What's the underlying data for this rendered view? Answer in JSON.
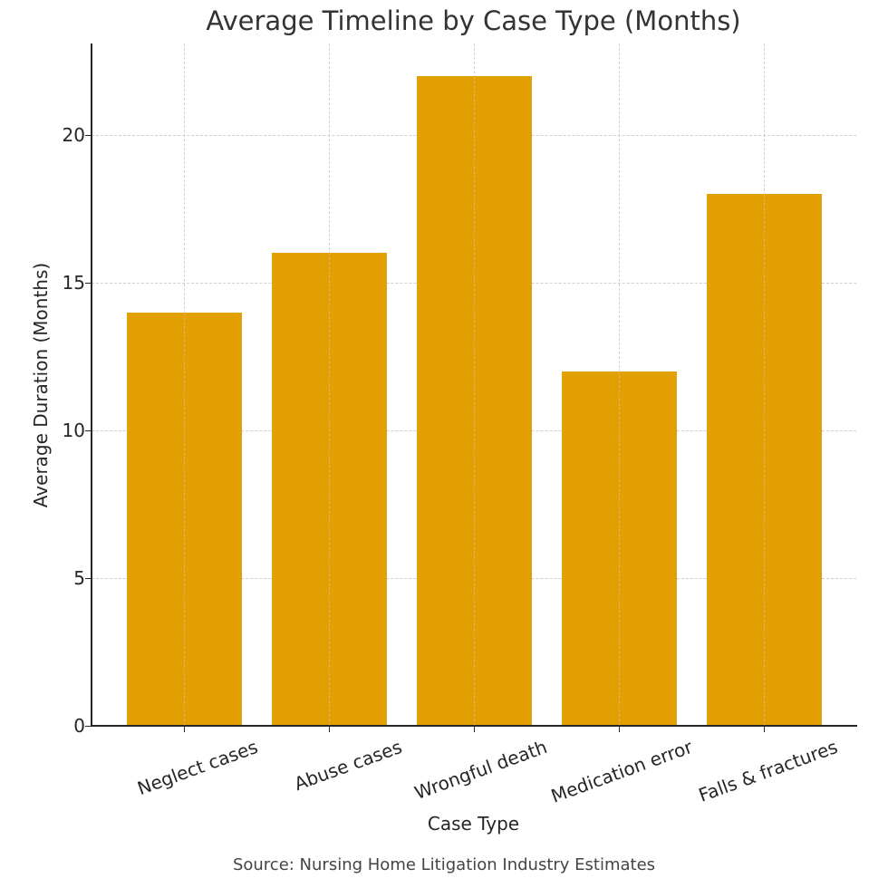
{
  "chart": {
    "title": "Average Timeline by Case Type (Months)",
    "xlabel": "Case Type",
    "ylabel": "Average Duration (Months)",
    "source": "Source: Nursing Home Litigation Industry Estimates",
    "bar_color": "#E3A002",
    "grid_color": "#CFCFCF",
    "yticks": [
      "0",
      "5",
      "10",
      "15",
      "20"
    ]
  },
  "chart_data": {
    "type": "bar",
    "title": "Average Timeline by Case Type (Months)",
    "xlabel": "Case Type",
    "ylabel": "Average Duration (Months)",
    "categories": [
      "Neglect cases",
      "Abuse cases",
      "Wrongful death",
      "Medication error",
      "Falls & fractures"
    ],
    "values": [
      14,
      16,
      22,
      12,
      18
    ],
    "ylim": [
      0,
      23.1
    ],
    "yticks": [
      0,
      5,
      10,
      15,
      20
    ],
    "grid": true,
    "grid_style": "dashed",
    "legend": null,
    "annotations": [
      "Source: Nursing Home Litigation Industry Estimates"
    ],
    "colors": [
      "#E3A002"
    ]
  }
}
